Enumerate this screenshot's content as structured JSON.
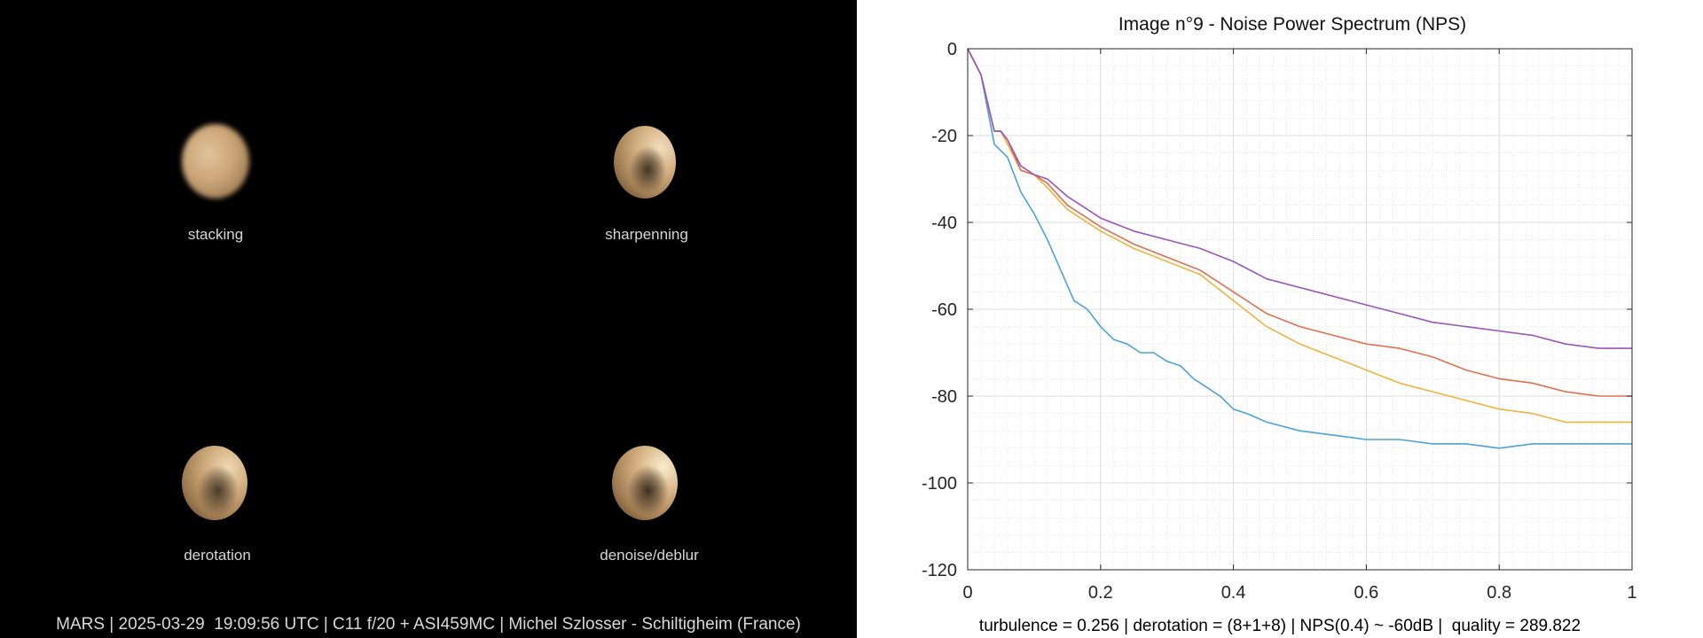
{
  "panels": {
    "stacking_label": "stacking",
    "sharpening_label": "sharpenning",
    "derotation_label": "derotation",
    "denoise_label": "denoise/deblur"
  },
  "footer_left": "MARS | 2025-03-29  19:09:56 UTC | C11 f/20 + ASI459MC | Michel Szlosser - Schiltigheim (France)",
  "footer_right": "turbulence = 0.256 | derotation = (8+1+8) | NPS(0.4) ~ -60dB |  quality = 289.822",
  "chart_data": {
    "type": "line",
    "title": "Image n°9 - Noise Power Spectrum (NPS)",
    "xlabel": "",
    "ylabel": "",
    "xlim": [
      0,
      1
    ],
    "ylim": [
      -120,
      0
    ],
    "x_ticks": [
      0,
      0.2,
      0.4,
      0.6,
      0.8,
      1
    ],
    "x_tick_labels": [
      "0",
      "0.2",
      "0.4",
      "0.6",
      "0.8",
      "1"
    ],
    "y_ticks": [
      0,
      -20,
      -40,
      -60,
      -80,
      -100,
      -120
    ],
    "y_tick_labels": [
      "0",
      "-20",
      "-40",
      "-60",
      "-80",
      "-100",
      "-120"
    ],
    "grid": true,
    "minor_grid": true,
    "series": [
      {
        "color": "#4DA3D6",
        "x": [
          0,
          0.02,
          0.04,
          0.06,
          0.08,
          0.1,
          0.12,
          0.14,
          0.16,
          0.18,
          0.2,
          0.22,
          0.24,
          0.26,
          0.28,
          0.3,
          0.32,
          0.34,
          0.36,
          0.38,
          0.4,
          0.42,
          0.45,
          0.5,
          0.55,
          0.6,
          0.65,
          0.7,
          0.75,
          0.8,
          0.85,
          0.9,
          0.95,
          1.0
        ],
        "values": [
          0,
          -6,
          -22,
          -25,
          -33,
          -38,
          -44,
          -51,
          -58,
          -60,
          -64,
          -67,
          -68,
          -70,
          -70,
          -72,
          -73,
          -76,
          -78,
          -80,
          -83,
          -84,
          -86,
          -88,
          -89,
          -90,
          -90,
          -91,
          -91,
          -92,
          -91,
          -91,
          -91,
          -91
        ]
      },
      {
        "color": "#F0B340",
        "x": [
          0,
          0.02,
          0.04,
          0.05,
          0.06,
          0.08,
          0.1,
          0.12,
          0.15,
          0.2,
          0.25,
          0.3,
          0.35,
          0.4,
          0.45,
          0.5,
          0.55,
          0.6,
          0.65,
          0.7,
          0.75,
          0.8,
          0.85,
          0.9,
          0.95,
          1.0
        ],
        "values": [
          0,
          -6,
          -19,
          -19,
          -22,
          -28,
          -29,
          -32,
          -37,
          -42,
          -46,
          -49,
          -52,
          -58,
          -64,
          -68,
          -71,
          -74,
          -77,
          -79,
          -81,
          -83,
          -84,
          -86,
          -86,
          -86
        ]
      },
      {
        "color": "#E07050",
        "x": [
          0,
          0.02,
          0.04,
          0.05,
          0.06,
          0.08,
          0.1,
          0.12,
          0.15,
          0.2,
          0.25,
          0.3,
          0.35,
          0.4,
          0.45,
          0.5,
          0.55,
          0.6,
          0.65,
          0.7,
          0.75,
          0.8,
          0.85,
          0.9,
          0.95,
          1.0
        ],
        "values": [
          0,
          -6,
          -19,
          -19,
          -21,
          -28,
          -29,
          -31,
          -36,
          -41,
          -45,
          -48,
          -51,
          -56,
          -61,
          -64,
          -66,
          -68,
          -69,
          -71,
          -74,
          -76,
          -77,
          -79,
          -80,
          -80
        ]
      },
      {
        "color": "#9A55B8",
        "x": [
          0,
          0.02,
          0.04,
          0.05,
          0.06,
          0.08,
          0.1,
          0.12,
          0.15,
          0.2,
          0.25,
          0.3,
          0.35,
          0.4,
          0.45,
          0.5,
          0.55,
          0.6,
          0.65,
          0.7,
          0.75,
          0.8,
          0.85,
          0.9,
          0.95,
          1.0
        ],
        "values": [
          0,
          -6,
          -19,
          -19,
          -21,
          -27,
          -29,
          -30,
          -34,
          -39,
          -42,
          -44,
          -46,
          -49,
          -53,
          -55,
          -57,
          -59,
          -61,
          -63,
          -64,
          -65,
          -66,
          -68,
          -69,
          -69
        ]
      }
    ]
  }
}
